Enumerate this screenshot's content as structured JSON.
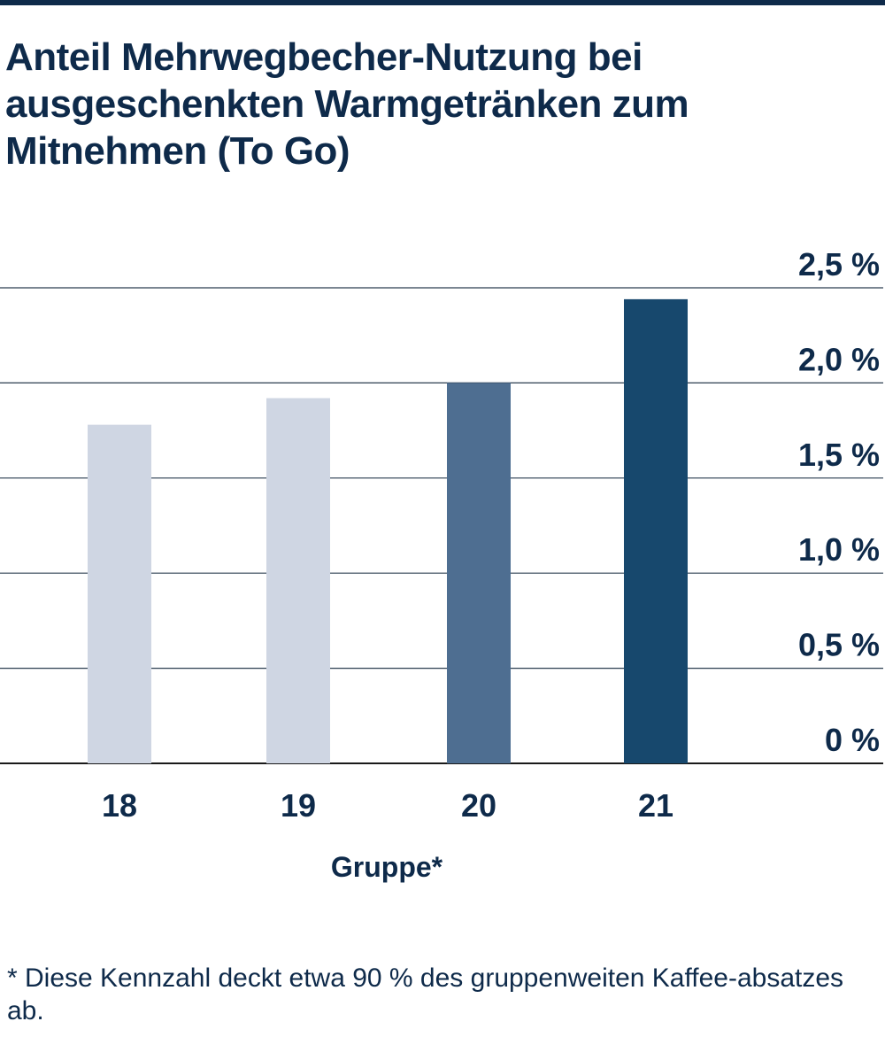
{
  "chart_data": {
    "type": "bar",
    "title": "Anteil Mehrwegbecher-Nutzung bei ausgeschenkten Warmgetränken zum Mitnehmen (To Go)",
    "categories": [
      "18",
      "19",
      "20",
      "21"
    ],
    "values": [
      1.78,
      1.92,
      2.0,
      2.44
    ],
    "bar_colors": [
      "#cfd6e3",
      "#cfd6e3",
      "#4e6e91",
      "#17486d"
    ],
    "xlabel": "Gruppe*",
    "ylabel": "",
    "ylim": [
      0,
      2.5
    ],
    "y_ticks": [
      {
        "value": 0,
        "label": "0 %"
      },
      {
        "value": 0.5,
        "label": "0,5 %"
      },
      {
        "value": 1.0,
        "label": "1,0 %"
      },
      {
        "value": 1.5,
        "label": "1,5 %"
      },
      {
        "value": 2.0,
        "label": "2,0 %"
      },
      {
        "value": 2.5,
        "label": "2,5 %"
      }
    ],
    "grid": true,
    "y_axis_position": "right"
  },
  "footnote": "* Diese Kennzahl deckt etwa 90 % des gruppenweiten Kaffee-absatzes ab.",
  "colors": {
    "text": "#0e2a4a",
    "gridline": "#2c3e50",
    "baseline": "#1a1a1a"
  }
}
